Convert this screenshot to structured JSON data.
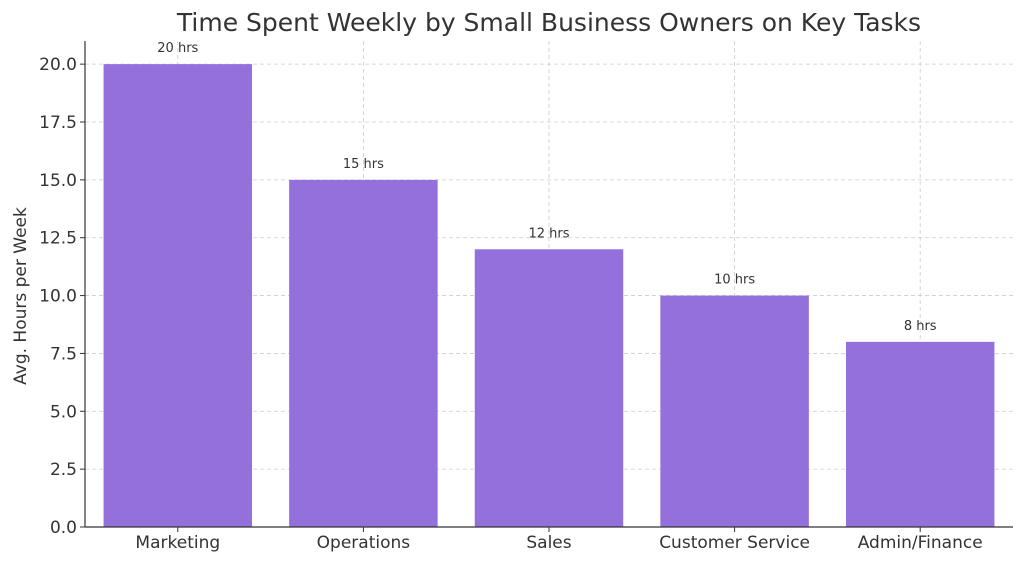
{
  "chart_data": {
    "type": "bar",
    "title": "Time Spent Weekly by Small Business Owners on Key Tasks",
    "xlabel": "",
    "ylabel": "Avg. Hours per Week",
    "categories": [
      "Marketing",
      "Operations",
      "Sales",
      "Customer Service",
      "Admin/Finance"
    ],
    "values": [
      20,
      15,
      12,
      10,
      8
    ],
    "data_labels": [
      "20 hrs",
      "15 hrs",
      "12 hrs",
      "10 hrs",
      "8 hrs"
    ],
    "ylim": [
      0,
      21
    ],
    "yticks": [
      "0.0",
      "2.5",
      "5.0",
      "7.5",
      "10.0",
      "12.5",
      "15.0",
      "17.5",
      "20.0"
    ],
    "grid": true,
    "colors": {
      "bar": "#9370db"
    }
  }
}
